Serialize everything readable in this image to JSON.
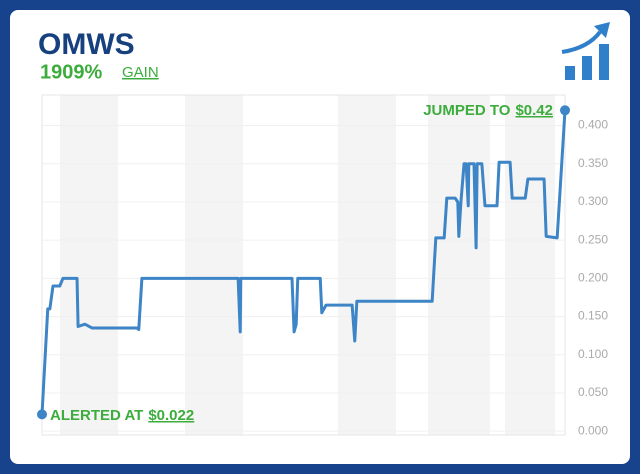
{
  "chart_data": {
    "type": "line",
    "title": "OMWS",
    "subtitle": "1909%",
    "subtitle_label": "GAIN",
    "annotations": [
      {
        "text": "ALERTED AT",
        "price": "$0.022"
      },
      {
        "text": "JUMPED TO",
        "price": "$0.42"
      }
    ],
    "xlim": [
      0,
      100
    ],
    "ylim": [
      -0.005,
      0.44
    ],
    "yticks": [
      {
        "value": 0,
        "label": "0.000"
      },
      {
        "value": 0.05,
        "label": "0.050"
      },
      {
        "value": 0.1,
        "label": "0.100"
      },
      {
        "value": 0.15,
        "label": "0.150"
      },
      {
        "value": 0.2,
        "label": "0.200"
      },
      {
        "value": 0.25,
        "label": "0.250"
      },
      {
        "value": 0.3,
        "label": "0.300"
      },
      {
        "value": 0.35,
        "label": "0.350"
      },
      {
        "value": 0.4,
        "label": "0.400"
      }
    ],
    "grid": true,
    "series": [
      {
        "name": "OMWS",
        "color": "#3d85c6",
        "x": [
          0,
          1.1,
          1.5,
          2.1,
          3.4,
          4.0,
          6.7,
          6.9,
          8.2,
          9.6,
          18.2,
          18.5,
          19.1,
          37.5,
          37.9,
          38.0,
          47.8,
          48.2,
          48.6,
          48.9,
          53.2,
          53.5,
          54.3,
          59.3,
          59.8,
          60.2,
          74.6,
          75.3,
          76.9,
          77.4,
          79.0,
          79.5,
          79.7,
          80.1,
          80.7,
          81.1,
          81.5,
          81.6,
          82.6,
          83.0,
          83.2,
          84.1,
          84.7,
          87.0,
          87.4,
          89.5,
          89.9,
          92.4,
          92.9,
          96.0,
          96.4,
          98.5,
          100
        ],
        "values": [
          0.022,
          0.16,
          0.16,
          0.19,
          0.19,
          0.2,
          0.2,
          0.137,
          0.14,
          0.135,
          0.135,
          0.133,
          0.2,
          0.2,
          0.13,
          0.2,
          0.2,
          0.13,
          0.14,
          0.2,
          0.2,
          0.155,
          0.165,
          0.165,
          0.118,
          0.17,
          0.17,
          0.253,
          0.253,
          0.305,
          0.305,
          0.3,
          0.255,
          0.3,
          0.35,
          0.35,
          0.295,
          0.35,
          0.35,
          0.24,
          0.35,
          0.35,
          0.295,
          0.295,
          0.352,
          0.352,
          0.305,
          0.305,
          0.33,
          0.33,
          0.255,
          0.253,
          0.42
        ]
      }
    ]
  }
}
